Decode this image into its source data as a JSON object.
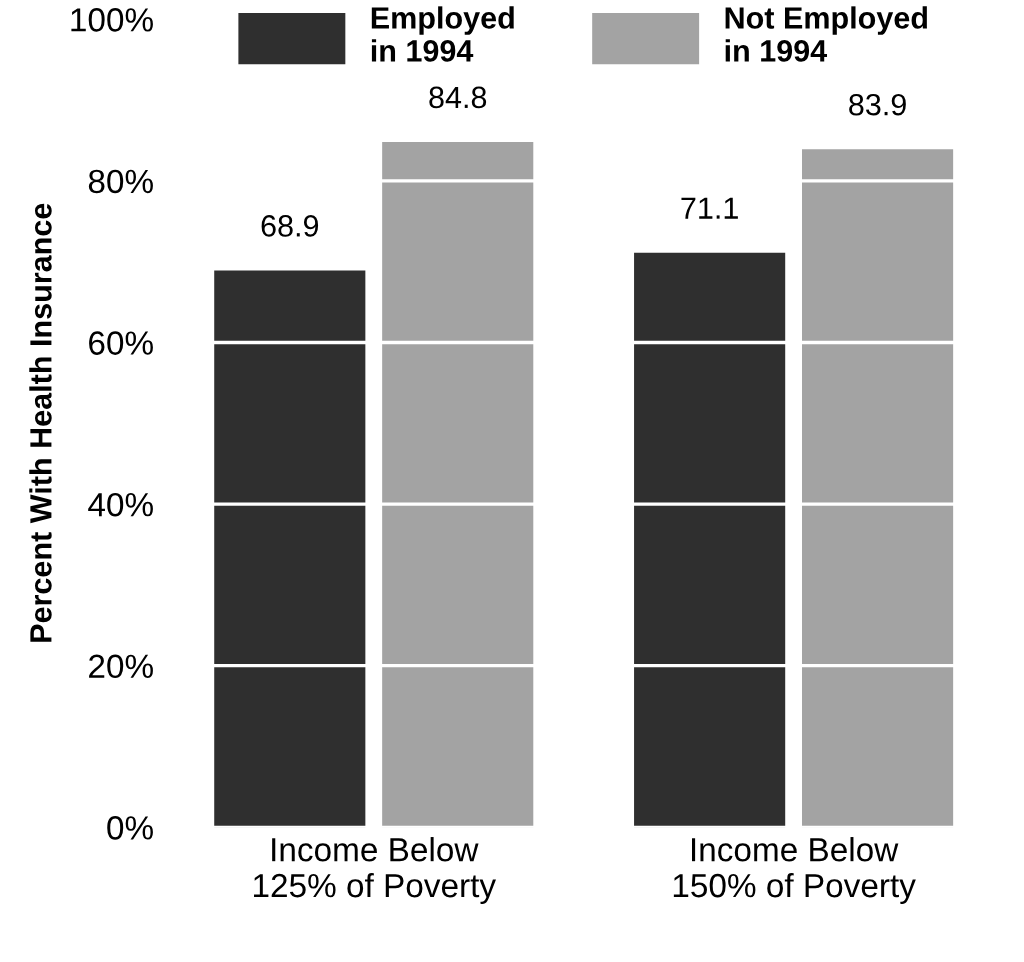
{
  "chart_data": {
    "type": "bar",
    "ylabel": "Percent With Health Insurance",
    "categories": [
      "Income Below\n125% of Poverty",
      "Income Below\n150% of Poverty"
    ],
    "series": [
      {
        "name": "Employed\nin 1994",
        "color": "#2f2f2f",
        "values": [
          68.9,
          71.1
        ]
      },
      {
        "name": "Not Employed\nin 1994",
        "color": "#a3a3a3",
        "values": [
          84.8,
          83.9
        ]
      }
    ],
    "ylim": [
      0,
      100
    ],
    "yticks": [
      {
        "value": 0,
        "label": "0%"
      },
      {
        "value": 20,
        "label": "20%"
      },
      {
        "value": 40,
        "label": "40%"
      },
      {
        "value": 60,
        "label": "60%"
      },
      {
        "value": 80,
        "label": "80%"
      },
      {
        "value": 100,
        "label": "100%"
      }
    ],
    "data_labels": true,
    "grid": "y",
    "legend": "top"
  }
}
